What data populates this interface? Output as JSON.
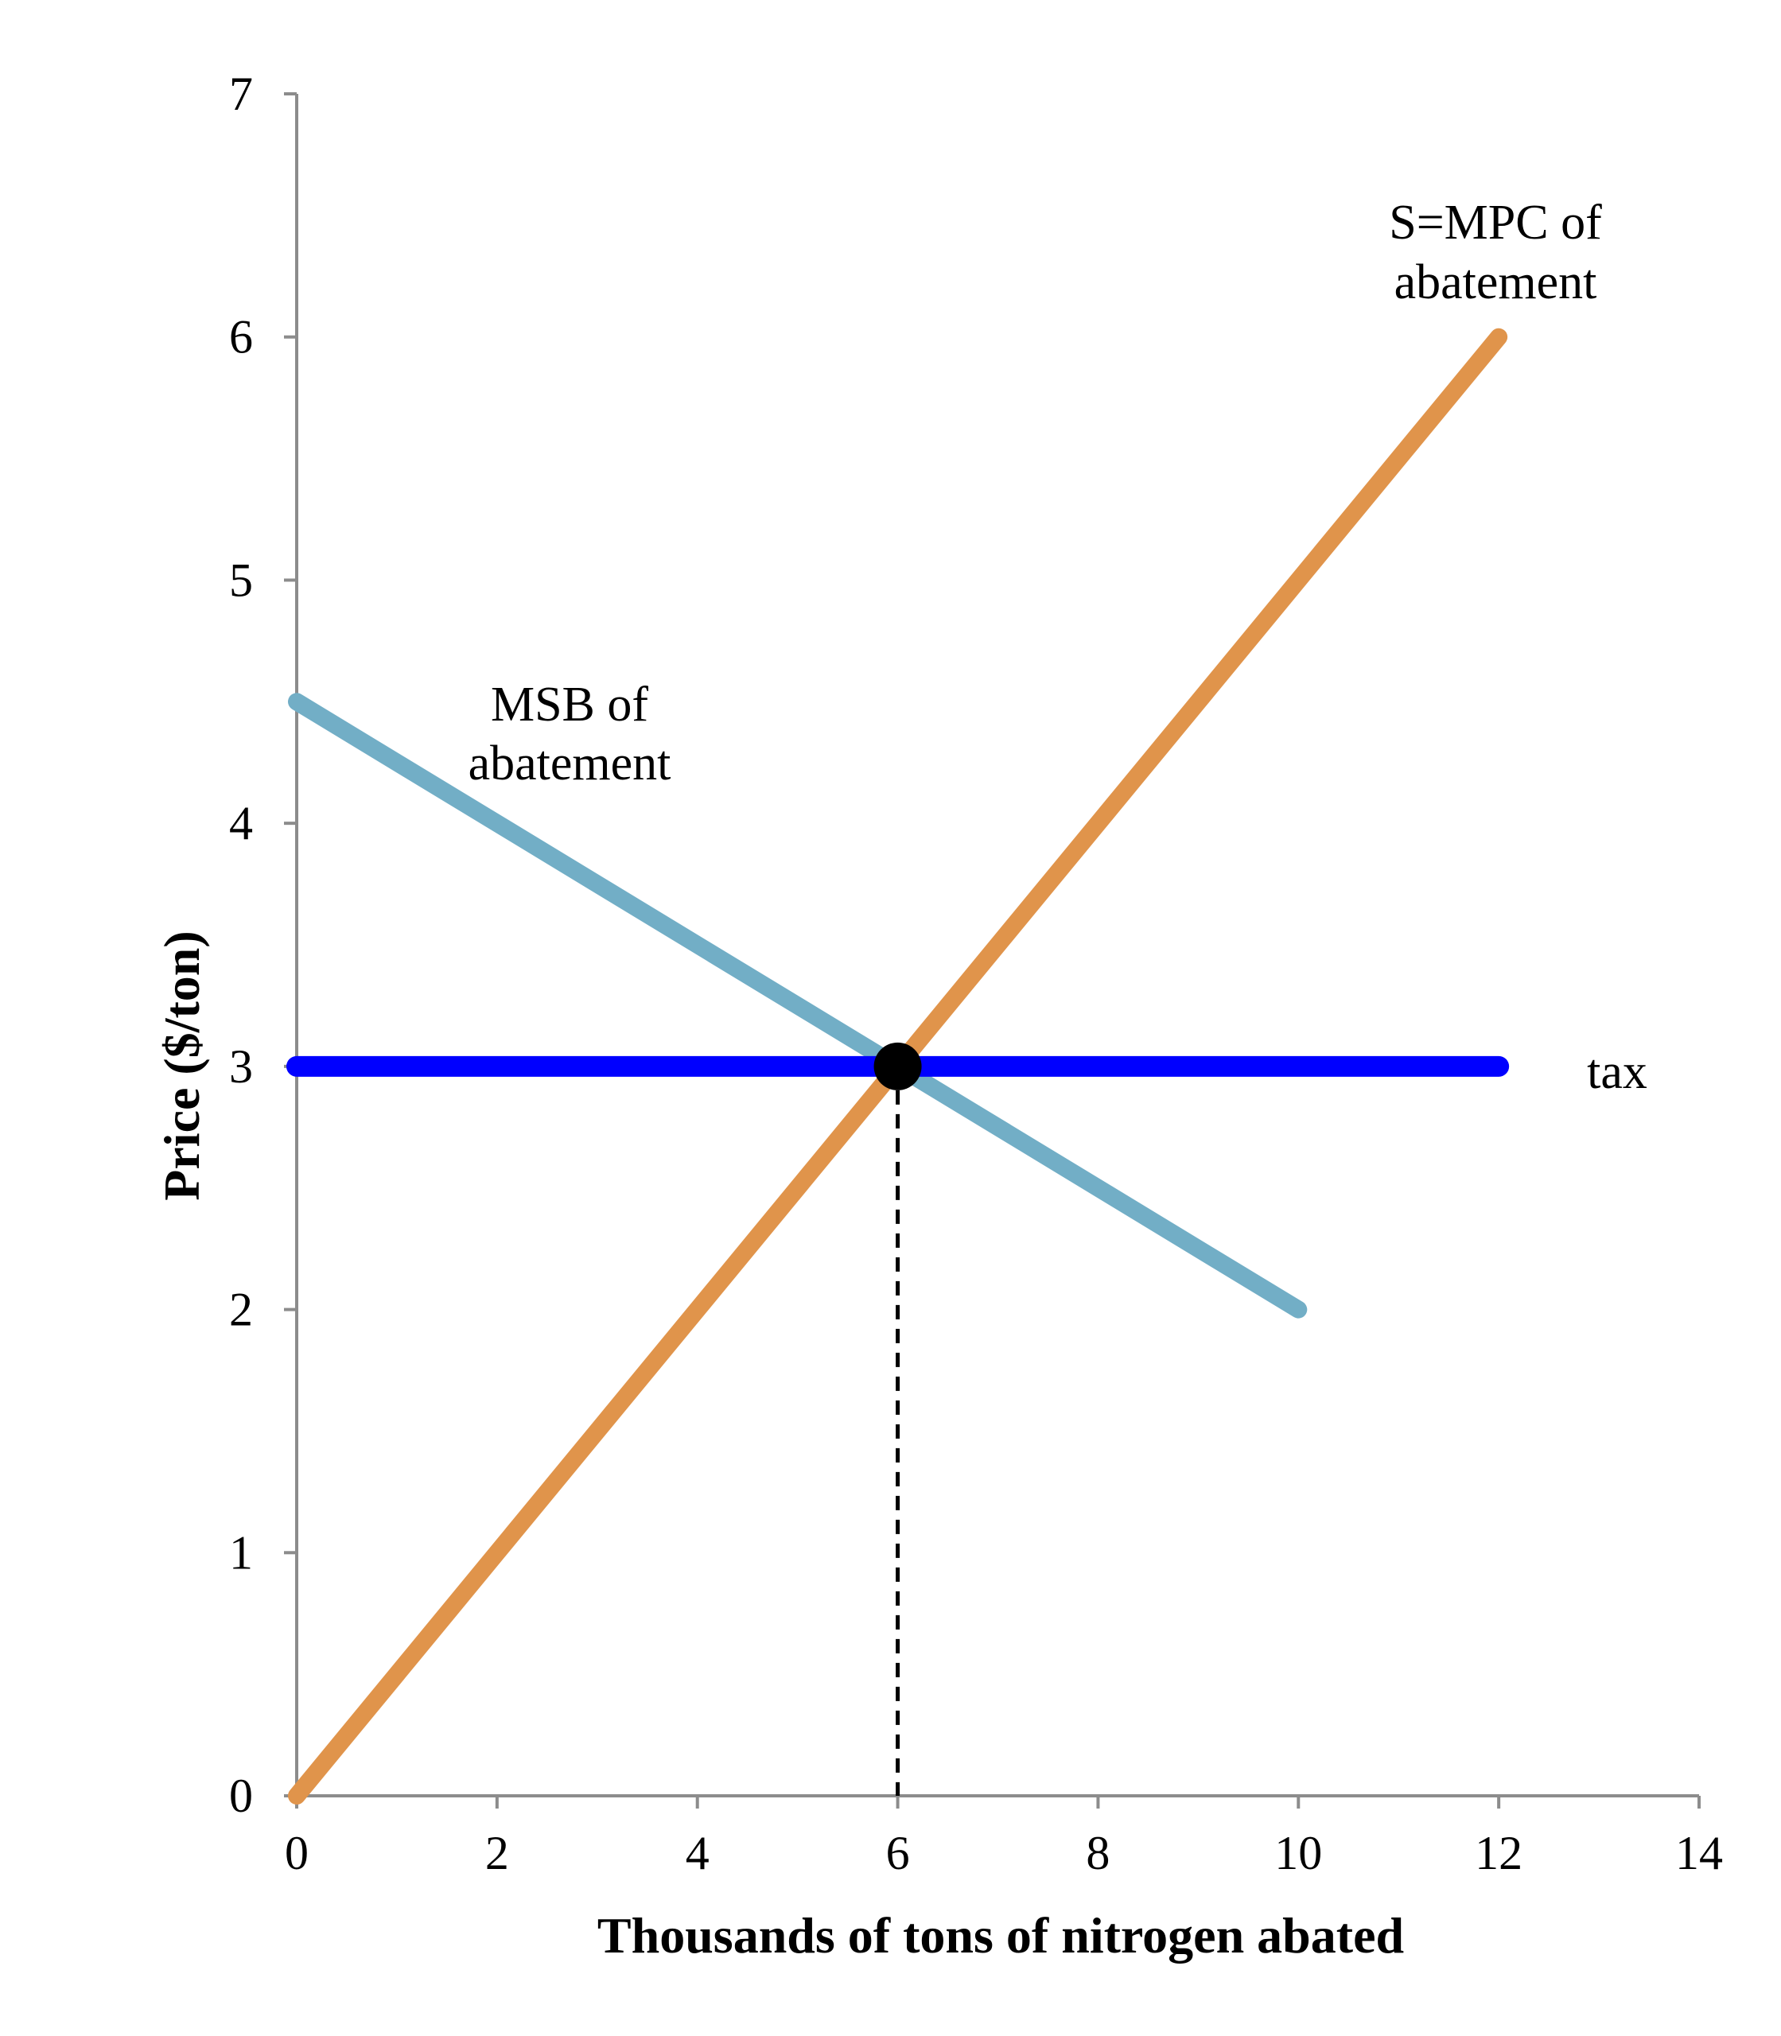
{
  "chart_data": {
    "type": "line",
    "title": "",
    "xlabel": "Thousands of tons of nitrogen abated",
    "ylabel": "Price ($/ton)",
    "xlim": [
      0,
      14
    ],
    "ylim": [
      0,
      7
    ],
    "x_ticks": [
      0,
      2,
      4,
      6,
      8,
      10,
      12,
      14
    ],
    "y_ticks": [
      0,
      1,
      2,
      3,
      4,
      5,
      6,
      7
    ],
    "x_tick_labels": [
      "0",
      "2",
      "4",
      "6",
      "8",
      "10",
      "12",
      "14"
    ],
    "y_tick_labels": [
      "0",
      "1",
      "2",
      "3",
      "4",
      "5",
      "6",
      "7"
    ],
    "grid": false,
    "series": [
      {
        "name": "MSB of abatement",
        "color": "#72AEC6",
        "points": [
          [
            0,
            4.5
          ],
          [
            10,
            2.0
          ]
        ]
      },
      {
        "name": "S=MPC of abatement",
        "color": "#E0944B",
        "points": [
          [
            0,
            0
          ],
          [
            12,
            6
          ]
        ]
      },
      {
        "name": "tax",
        "color": "#0000FF",
        "points": [
          [
            0,
            3
          ],
          [
            12,
            3
          ]
        ]
      }
    ],
    "equilibrium": {
      "x": 6,
      "y": 3
    },
    "annotations": {
      "msb_line1": "MSB of",
      "msb_line2": "abatement",
      "mpc_line1": "S=MPC of",
      "mpc_line2": "abatement",
      "tax": "tax"
    }
  }
}
